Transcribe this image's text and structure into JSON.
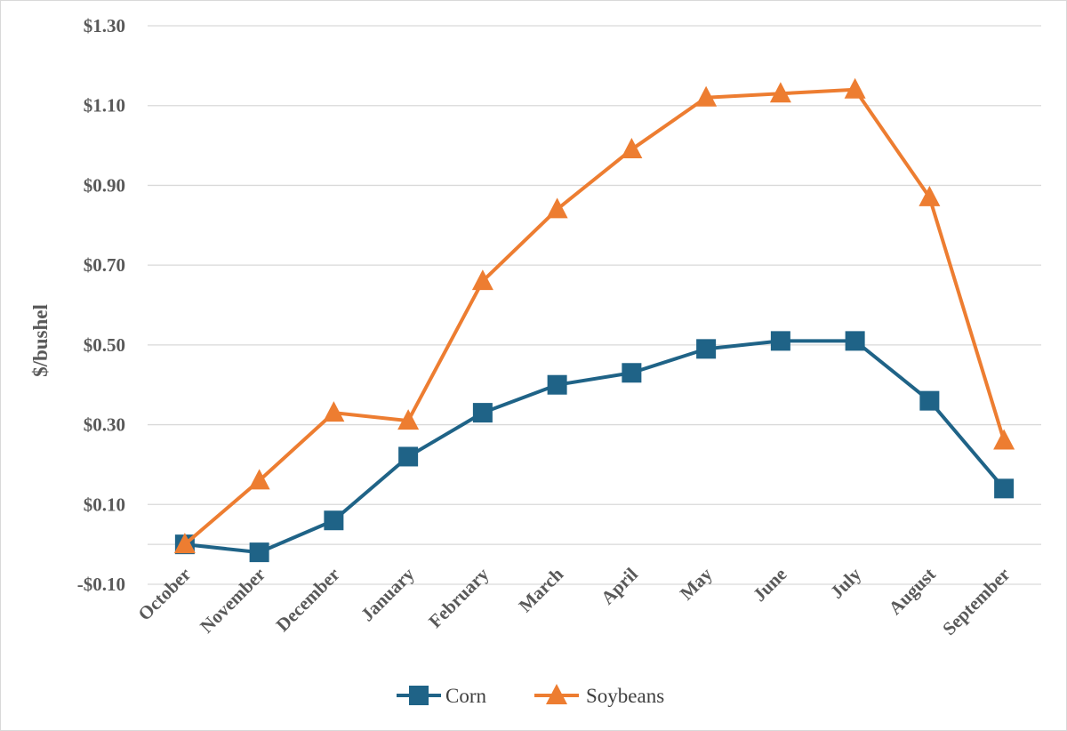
{
  "chart_data": {
    "type": "line",
    "title": "",
    "xlabel": "",
    "ylabel": "$/bushel",
    "ylim": [
      -0.1,
      1.3
    ],
    "yticks": [
      "$1.30",
      "$1.10",
      "$0.90",
      "$0.70",
      "$0.50",
      "$0.30",
      "$0.10",
      "-$0.10"
    ],
    "ytick_values": [
      1.3,
      1.1,
      0.9,
      0.7,
      0.5,
      0.3,
      0.1,
      -0.1
    ],
    "grid": true,
    "legend_position": "bottom",
    "categories": [
      "October",
      "November",
      "December",
      "January",
      "February",
      "March",
      "April",
      "May",
      "June",
      "July",
      "August",
      "September"
    ],
    "series": [
      {
        "name": "Corn",
        "color": "#1f6387",
        "marker": "square",
        "values": [
          0.0,
          -0.02,
          0.06,
          0.22,
          0.33,
          0.4,
          0.43,
          0.49,
          0.51,
          0.51,
          0.36,
          0.14
        ]
      },
      {
        "name": "Soybeans",
        "color": "#ed7d31",
        "marker": "triangle",
        "values": [
          0.0,
          0.16,
          0.33,
          0.31,
          0.66,
          0.84,
          0.99,
          1.12,
          1.13,
          1.14,
          0.87,
          0.26
        ]
      }
    ]
  }
}
